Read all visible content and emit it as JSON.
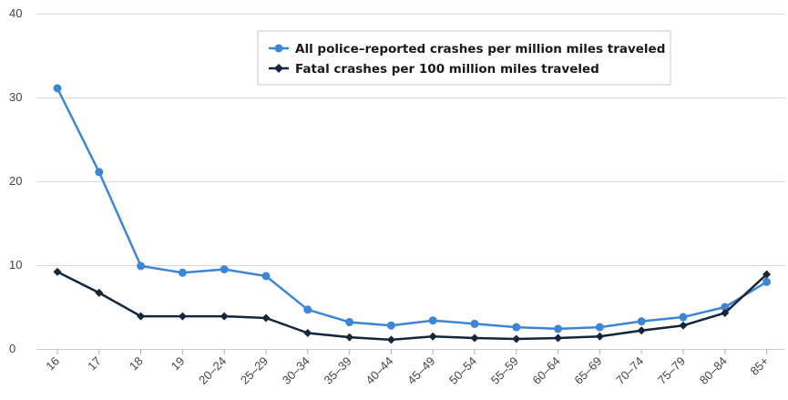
{
  "chart_data": {
    "type": "line",
    "title": "",
    "xlabel": "",
    "ylabel": "",
    "categories": [
      "16",
      "17",
      "18",
      "19",
      "20–24",
      "25–29",
      "30–34",
      "35–39",
      "40–44",
      "45–49",
      "50–54",
      "55–59",
      "60–64",
      "65–69",
      "70–74",
      "75–79",
      "80–84",
      "85+"
    ],
    "ylim": [
      0,
      40
    ],
    "yticks": [
      0,
      10,
      20,
      30,
      40
    ],
    "grid": true,
    "legend_position": "top-right",
    "series": [
      {
        "name": "All police–reported crashes per million miles traveled",
        "color": "#3d86d6",
        "marker": "circle",
        "values": [
          31.1,
          21.1,
          9.9,
          9.1,
          9.5,
          8.7,
          4.7,
          3.2,
          2.8,
          3.4,
          3.0,
          2.6,
          2.4,
          2.6,
          3.3,
          3.8,
          5.0,
          8.0
        ]
      },
      {
        "name": "Fatal crashes per 100 million miles traveled",
        "color": "#14263a",
        "marker": "diamond",
        "values": [
          9.2,
          6.7,
          3.9,
          3.9,
          3.9,
          3.7,
          1.9,
          1.4,
          1.1,
          1.5,
          1.3,
          1.2,
          1.3,
          1.5,
          2.2,
          2.8,
          4.3,
          8.9
        ]
      }
    ]
  }
}
